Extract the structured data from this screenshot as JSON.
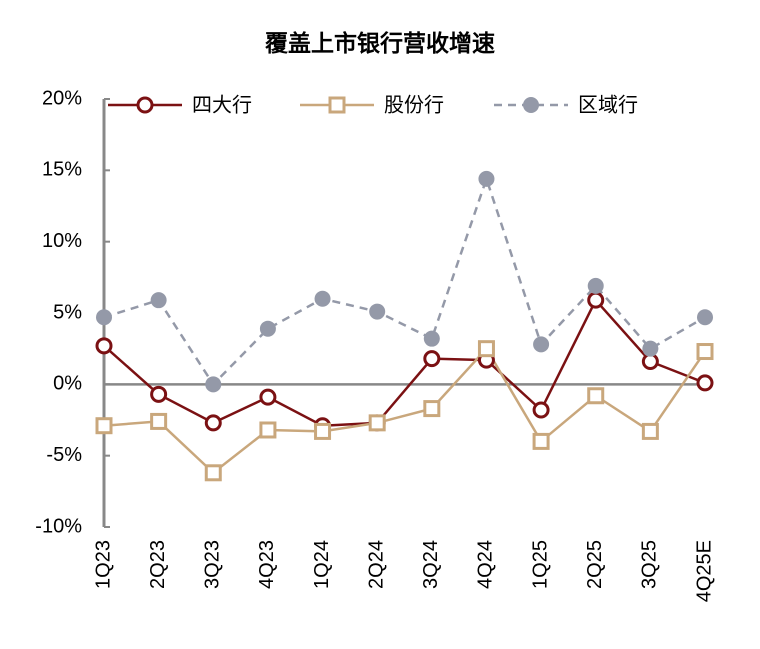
{
  "chart_data": {
    "type": "line",
    "title": "覆盖上市银行营收增速",
    "categories": [
      "1Q23",
      "2Q23",
      "3Q23",
      "4Q23",
      "1Q24",
      "2Q24",
      "3Q24",
      "4Q24",
      "1Q25",
      "2Q25",
      "3Q25",
      "4Q25E"
    ],
    "series": [
      {
        "name": "四大行",
        "color": "#7b1113",
        "marker": "circle-open",
        "line_style": "solid",
        "values": [
          2.7,
          -0.7,
          -2.7,
          -0.9,
          -2.9,
          -2.7,
          1.8,
          1.7,
          -1.8,
          5.9,
          1.6,
          0.1
        ]
      },
      {
        "name": "股份行",
        "color": "#c9a77c",
        "marker": "square-open",
        "line_style": "solid",
        "values": [
          -2.9,
          -2.6,
          -6.2,
          -3.2,
          -3.3,
          -2.7,
          -1.7,
          2.5,
          -4.0,
          -0.8,
          -3.3,
          2.3
        ]
      },
      {
        "name": "区域行",
        "color": "#9499a8",
        "marker": "circle-filled",
        "line_style": "dashed",
        "values": [
          4.7,
          5.9,
          0.0,
          3.9,
          6.0,
          5.1,
          3.2,
          14.4,
          2.8,
          6.9,
          2.5,
          4.7
        ]
      }
    ],
    "ylim": [
      -10,
      20
    ],
    "yticks": [
      {
        "value": -10,
        "label": "-10%"
      },
      {
        "value": -5,
        "label": "-5%"
      },
      {
        "value": 0,
        "label": "0%"
      },
      {
        "value": 5,
        "label": "5%"
      },
      {
        "value": 10,
        "label": "10%"
      },
      {
        "value": 15,
        "label": "15%"
      },
      {
        "value": 20,
        "label": "20%"
      }
    ],
    "legend": "top"
  }
}
